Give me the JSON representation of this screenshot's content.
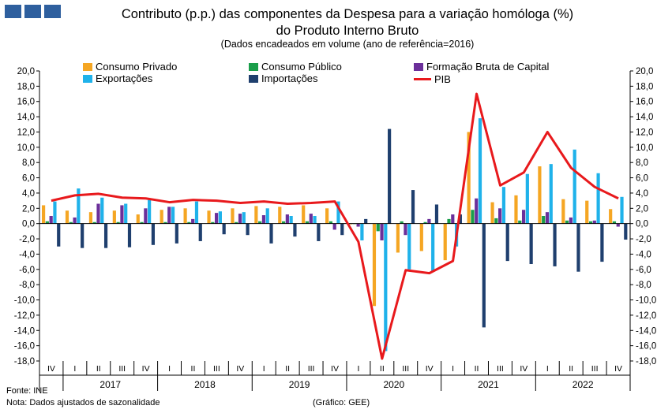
{
  "chart_data": {
    "type": "bar",
    "title_line1": "Contributo (p.p.) das componentes da Despesa para a variação homóloga (%)",
    "title_line2": "do Produto Interno Bruto",
    "subtitle": "(Dados encadeados em volume (ano de referência=2016)",
    "ylim": [
      -18,
      20
    ],
    "yticks": [
      "20,0",
      "18,0",
      "16,0",
      "14,0",
      "12,0",
      "10,0",
      "8,0",
      "6,0",
      "4,0",
      "2,0",
      "0,0",
      "-2,0",
      "-4,0",
      "-6,0",
      "-8,0",
      "-10,0",
      "-12,0",
      "-14,0",
      "-16,0",
      "-18,0"
    ],
    "quarters": [
      "IV",
      "I",
      "II",
      "III",
      "IV",
      "I",
      "II",
      "III",
      "IV",
      "I",
      "II",
      "III",
      "IV",
      "I",
      "II",
      "III",
      "IV",
      "I",
      "II",
      "III",
      "IV",
      "I",
      "II",
      "III",
      "IV"
    ],
    "years": [
      {
        "label": "2017",
        "start": 1,
        "end": 4
      },
      {
        "label": "2018",
        "start": 5,
        "end": 8
      },
      {
        "label": "2019",
        "start": 9,
        "end": 12
      },
      {
        "label": "2020",
        "start": 13,
        "end": 16
      },
      {
        "label": "2021",
        "start": 17,
        "end": 20
      },
      {
        "label": "2022",
        "start": 21,
        "end": 24
      }
    ],
    "series": [
      {
        "name": "Consumo Privado",
        "color": "#f5a623",
        "values": [
          2.4,
          1.7,
          1.5,
          1.7,
          1.2,
          1.8,
          2.0,
          1.7,
          2.0,
          2.3,
          2.2,
          2.4,
          2.0,
          -0.1,
          -10.8,
          -3.8,
          -3.6,
          -4.8,
          12.0,
          2.8,
          3.7,
          7.5,
          3.2,
          3.0,
          1.9
        ]
      },
      {
        "name": "Consumo Público",
        "color": "#1a9e4a",
        "values": [
          0.3,
          0.2,
          0.2,
          0.2,
          0.2,
          0.2,
          0.2,
          0.2,
          0.2,
          0.3,
          0.3,
          0.3,
          0.3,
          0.0,
          -1.0,
          0.3,
          0.2,
          0.6,
          1.8,
          0.7,
          0.4,
          1.0,
          0.4,
          0.3,
          0.3
        ]
      },
      {
        "name": "Formação Bruta de Capital",
        "color": "#6b2f9a",
        "values": [
          1.0,
          0.8,
          2.6,
          2.4,
          2.0,
          2.2,
          0.6,
          1.4,
          1.3,
          1.1,
          1.2,
          1.3,
          -0.8,
          -0.4,
          -2.2,
          -1.5,
          0.6,
          1.2,
          3.3,
          2.0,
          1.8,
          1.5,
          0.8,
          0.4,
          -0.4
        ]
      },
      {
        "name": "Exportações",
        "color": "#1fb2ea",
        "values": [
          2.9,
          4.6,
          3.4,
          2.6,
          3.1,
          2.2,
          2.9,
          1.6,
          1.5,
          2.0,
          1.0,
          1.0,
          2.9,
          -2.2,
          -16.7,
          -6.0,
          -6.2,
          -3.0,
          13.8,
          4.8,
          6.5,
          7.8,
          9.7,
          6.6,
          3.5
        ]
      },
      {
        "name": "Importações",
        "color": "#1f3f6e",
        "values": [
          -3.0,
          -3.2,
          -3.2,
          -3.1,
          -2.8,
          -2.6,
          -2.3,
          -1.4,
          -1.5,
          -2.6,
          -1.7,
          -2.3,
          -1.5,
          0.6,
          12.4,
          4.4,
          2.5,
          1.2,
          -13.6,
          -4.9,
          -5.3,
          -5.6,
          -6.3,
          -5.0,
          -2.1
        ]
      }
    ],
    "line": {
      "name": "PIB",
      "color": "#e8191c",
      "values": [
        3.0,
        3.7,
        3.9,
        3.4,
        3.3,
        2.8,
        3.1,
        3.0,
        2.7,
        2.9,
        2.6,
        2.7,
        2.9,
        -2.4,
        -17.7,
        -6.1,
        -6.5,
        -4.9,
        17.0,
        5.0,
        6.7,
        12.0,
        7.3,
        4.8,
        3.3
      ]
    }
  },
  "legend": {
    "consumo_privado": "Consumo Privado",
    "consumo_publico": "Consumo Público",
    "fbc": "Formação Bruta de Capital",
    "exportacoes": "Exportações",
    "importacoes": "Importações",
    "pib": "PIB"
  },
  "footer": {
    "fonte": "Fonte: INE",
    "nota": "Nota: Dados ajustados de sazonalidade",
    "grafico": "(Gráfico: GEE)"
  },
  "colors": {
    "logo": "#2e5f9e"
  }
}
